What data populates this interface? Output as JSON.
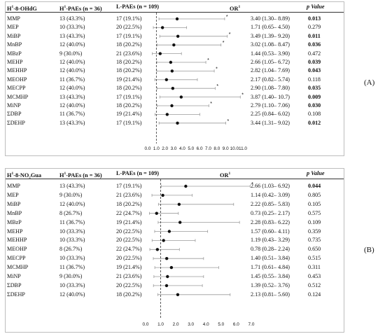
{
  "panels": [
    {
      "id": "A",
      "label": "(A)",
      "header": {
        "marker": "H",
        "marker_sup": "1",
        "marker_rest": "-8-OHdG",
        "h_group": "H",
        "h_sup": "1",
        "h_rest": "-PAEs (n = 36)",
        "l_group": "L-PAEs (n = 109)",
        "or": "OR",
        "or_sup": "1",
        "pvalue": "p Value"
      },
      "ticks": [
        "0.0",
        "1.0",
        "2.0",
        "3.0",
        "4.0",
        "5.0",
        "6.0",
        "7.0",
        "8.0",
        "9.0",
        "10.0",
        "11.0"
      ],
      "rows": [
        {
          "name": "MMP",
          "h": "13 (43.3%)",
          "l": "17 (19.1%)",
          "or": "3.40 (1.30– 8.89)",
          "est": 3.4,
          "lo": 1.3,
          "hi": 8.89,
          "p": "0.013",
          "sig": true,
          "star": true
        },
        {
          "name": "MEP",
          "h": "10 (33.3%)",
          "l": "20 (22.5%)",
          "or": "1.71 (0.65– 4.50)",
          "est": 1.71,
          "lo": 0.65,
          "hi": 4.5,
          "p": "0.279",
          "sig": false,
          "star": false
        },
        {
          "name": "MiBP",
          "h": "13 (43.3%)",
          "l": "17 (19.1%)",
          "or": "3.49 (1.39– 9.20)",
          "est": 3.49,
          "lo": 1.39,
          "hi": 9.2,
          "p": "0.011",
          "sig": true,
          "star": true
        },
        {
          "name": "MnBP",
          "h": "12 (40.0%)",
          "l": "18 (20.2%)",
          "or": "3.02 (1.08– 8.47)",
          "est": 3.02,
          "lo": 1.08,
          "hi": 8.47,
          "p": "0.036",
          "sig": true,
          "star": true
        },
        {
          "name": "MBzP",
          "h": "9 (30.0%)",
          "l": "21 (23.6%)",
          "or": "1.44 (0.53– 3.90)",
          "est": 1.44,
          "lo": 0.53,
          "hi": 3.9,
          "p": "0.472",
          "sig": false,
          "star": false
        },
        {
          "name": "MEHP",
          "h": "12 (40.0%)",
          "l": "18 (20.2%)",
          "or": "2.66 (1.05– 6.72)",
          "est": 2.66,
          "lo": 1.05,
          "hi": 6.72,
          "p": "0.039",
          "sig": true,
          "star": true
        },
        {
          "name": "MEHHP",
          "h": "12 (40.0%)",
          "l": "18 (20.2%)",
          "or": "2.82 (1.04– 7.69)",
          "est": 2.82,
          "lo": 1.04,
          "hi": 7.69,
          "p": "0.043",
          "sig": true,
          "star": true
        },
        {
          "name": "MEOHP",
          "h": "11 (36.7%)",
          "l": "19 (21.4%)",
          "or": "2.17 (0.82– 5.74)",
          "est": 2.17,
          "lo": 0.82,
          "hi": 5.74,
          "p": "0.118",
          "sig": false,
          "star": false
        },
        {
          "name": "MECPP",
          "h": "12 (40.0%)",
          "l": "18 (20.2%)",
          "or": "2.90 (1.08– 7.80)",
          "est": 2.9,
          "lo": 1.08,
          "hi": 7.8,
          "p": "0.035",
          "sig": true,
          "star": true
        },
        {
          "name": "MCMHP",
          "h": "13 (43.3%)",
          "l": "17 (19.1%)",
          "or": "3.87 (1.40– 10.7)",
          "est": 3.87,
          "lo": 1.4,
          "hi": 10.7,
          "p": "0.009",
          "sig": true,
          "star": true
        },
        {
          "name": "MiNP",
          "h": "12 (40.0%)",
          "l": "18 (20.2%)",
          "or": "2.79 (1.10– 7.06)",
          "est": 2.79,
          "lo": 1.1,
          "hi": 7.06,
          "p": "0.030",
          "sig": true,
          "star": true
        },
        {
          "name": "ΣDBP",
          "h": "11 (36.7%)",
          "l": "19 (21.4%)",
          "or": "2.25 (0.84– 6.02)",
          "est": 2.25,
          "lo": 0.84,
          "hi": 6.02,
          "p": "0.108",
          "sig": false,
          "star": false
        },
        {
          "name": "ΣDEHP",
          "h": "13 (43.3%)",
          "l": "17 (19.1%)",
          "or": "3.44 (1.31– 9.02)",
          "est": 3.44,
          "lo": 1.31,
          "hi": 9.02,
          "p": "0.012",
          "sig": true,
          "star": true
        }
      ]
    },
    {
      "id": "B",
      "label": "(B)",
      "header": {
        "marker": "H",
        "marker_sup": "1",
        "marker_rest": "-8-NO₂Gua",
        "h_group": "H",
        "h_sup": "1",
        "h_rest": "-PAEs (n = 36)",
        "l_group": "L-PAEs (n = 109)",
        "or": "OR",
        "or_sup": "1",
        "pvalue": "p Value"
      },
      "ticks": [
        "0.0",
        "1.0",
        "2.0",
        "3.0",
        "4.0",
        "5.0",
        "6.0",
        "7.0"
      ],
      "rows": [
        {
          "name": "MMP",
          "h": "13 (43.3%)",
          "l": "17 (19.1%)",
          "or": "2.66 (1.03– 6.92)",
          "est": 2.66,
          "lo": 1.03,
          "hi": 6.92,
          "p": "0.044",
          "sig": true,
          "star": true
        },
        {
          "name": "MEP",
          "h": "9 (30.0%)",
          "l": "21 (23.6%)",
          "or": "1.14 (0.42– 3.09)",
          "est": 1.14,
          "lo": 0.42,
          "hi": 3.09,
          "p": "0.805",
          "sig": false,
          "star": false
        },
        {
          "name": "MiBP",
          "h": "12 (40.0%)",
          "l": "18 (20.2%)",
          "or": "2.22 (0.85– 5.83)",
          "est": 2.22,
          "lo": 0.85,
          "hi": 5.83,
          "p": "0.105",
          "sig": false,
          "star": false
        },
        {
          "name": "MnBP",
          "h": "8 (26.7%)",
          "l": "22 (24.7%)",
          "or": "0.73 (0.25– 2.17)",
          "est": 0.73,
          "lo": 0.25,
          "hi": 2.17,
          "p": "0.575",
          "sig": false,
          "star": false
        },
        {
          "name": "MBzP",
          "h": "11 (36.7%)",
          "l": "19 (21.4%)",
          "or": "2.28 (0.83– 6.22)",
          "est": 2.28,
          "lo": 0.83,
          "hi": 6.22,
          "p": "0.109",
          "sig": false,
          "star": false
        },
        {
          "name": "MEHP",
          "h": "10 (33.3%)",
          "l": "20 (22.5%)",
          "or": "1.57 (0.60– 4.11)",
          "est": 1.57,
          "lo": 0.6,
          "hi": 4.11,
          "p": "0.359",
          "sig": false,
          "star": false
        },
        {
          "name": "MEHHP",
          "h": "10 (33.3%)",
          "l": "20 (22.5%)",
          "or": "1.19 (0.43– 3.29)",
          "est": 1.19,
          "lo": 0.43,
          "hi": 3.29,
          "p": "0.735",
          "sig": false,
          "star": false
        },
        {
          "name": "MEOHP",
          "h": "8 (26.7%)",
          "l": "22 (24.7%)",
          "or": "0.78 (0.28– 2.24)",
          "est": 0.78,
          "lo": 0.28,
          "hi": 2.24,
          "p": "0.650",
          "sig": false,
          "star": false
        },
        {
          "name": "MECPP",
          "h": "10 (33.3%)",
          "l": "20 (22.5%)",
          "or": "1.40 (0.51– 3.84)",
          "est": 1.4,
          "lo": 0.51,
          "hi": 3.84,
          "p": "0.515",
          "sig": false,
          "star": false
        },
        {
          "name": "MCMHP",
          "h": "11 (36.7%)",
          "l": "19 (21.4%)",
          "or": "1.71 (0.61– 4.84)",
          "est": 1.71,
          "lo": 0.61,
          "hi": 4.84,
          "p": "0.311",
          "sig": false,
          "star": false
        },
        {
          "name": "MiNP",
          "h": "9 (30.0%)",
          "l": "21 (23.6%)",
          "or": "1.45 (0.55– 3.84)",
          "est": 1.45,
          "lo": 0.55,
          "hi": 3.84,
          "p": "0.453",
          "sig": false,
          "star": false
        },
        {
          "name": "ΣDBP",
          "h": "10 (33.3%)",
          "l": "20 (22.5%)",
          "or": "1.39 (0.52– 3.76)",
          "est": 1.39,
          "lo": 0.52,
          "hi": 3.76,
          "p": "0.512",
          "sig": false,
          "star": false
        },
        {
          "name": "ΣDEHP",
          "h": "12 (40.0%)",
          "l": "18 (20.2%)",
          "or": "2.13 (0.81– 5.60)",
          "est": 2.13,
          "lo": 0.81,
          "hi": 5.6,
          "p": "0.124",
          "sig": false,
          "star": false
        }
      ]
    }
  ],
  "chart_data": [
    {
      "type": "forest",
      "panel": "A",
      "title": "",
      "xlabel": "",
      "xlim": [
        0,
        11
      ],
      "reference_line": 1.0,
      "categories": [
        "MMP",
        "MEP",
        "MiBP",
        "MnBP",
        "MBzP",
        "MEHP",
        "MEHHP",
        "MEOHP",
        "MECPP",
        "MCMHP",
        "MiNP",
        "ΣDBP",
        "ΣDEHP"
      ],
      "or": [
        3.4,
        1.71,
        3.49,
        3.02,
        1.44,
        2.66,
        2.82,
        2.17,
        2.9,
        3.87,
        2.79,
        2.25,
        3.44
      ],
      "ci_low": [
        1.3,
        0.65,
        1.39,
        1.08,
        0.53,
        1.05,
        1.04,
        0.82,
        1.08,
        1.4,
        1.1,
        0.84,
        1.31
      ],
      "ci_high": [
        8.89,
        4.5,
        9.2,
        8.47,
        3.9,
        6.72,
        7.69,
        5.74,
        7.8,
        10.7,
        7.06,
        6.02,
        9.02
      ],
      "p": [
        "0.013",
        "0.279",
        "0.011",
        "0.036",
        "0.472",
        "0.039",
        "0.043",
        "0.118",
        "0.035",
        "0.009",
        "0.030",
        "0.108",
        "0.012"
      ]
    },
    {
      "type": "forest",
      "panel": "B",
      "title": "",
      "xlabel": "",
      "xlim": [
        0,
        7
      ],
      "reference_line": 1.0,
      "categories": [
        "MMP",
        "MEP",
        "MiBP",
        "MnBP",
        "MBzP",
        "MEHP",
        "MEHHP",
        "MEOHP",
        "MECPP",
        "MCMHP",
        "MiNP",
        "ΣDBP",
        "ΣDEHP"
      ],
      "or": [
        2.66,
        1.14,
        2.22,
        0.73,
        2.28,
        1.57,
        1.19,
        0.78,
        1.4,
        1.71,
        1.45,
        1.39,
        2.13
      ],
      "ci_low": [
        1.03,
        0.42,
        0.85,
        0.25,
        0.83,
        0.6,
        0.43,
        0.28,
        0.51,
        0.61,
        0.55,
        0.52,
        0.81
      ],
      "ci_high": [
        6.92,
        3.09,
        5.83,
        2.17,
        6.22,
        4.11,
        3.29,
        2.24,
        3.84,
        4.84,
        3.84,
        3.76,
        5.6
      ],
      "p": [
        "0.044",
        "0.805",
        "0.105",
        "0.575",
        "0.109",
        "0.359",
        "0.735",
        "0.650",
        "0.515",
        "0.311",
        "0.453",
        "0.512",
        "0.124"
      ]
    }
  ]
}
